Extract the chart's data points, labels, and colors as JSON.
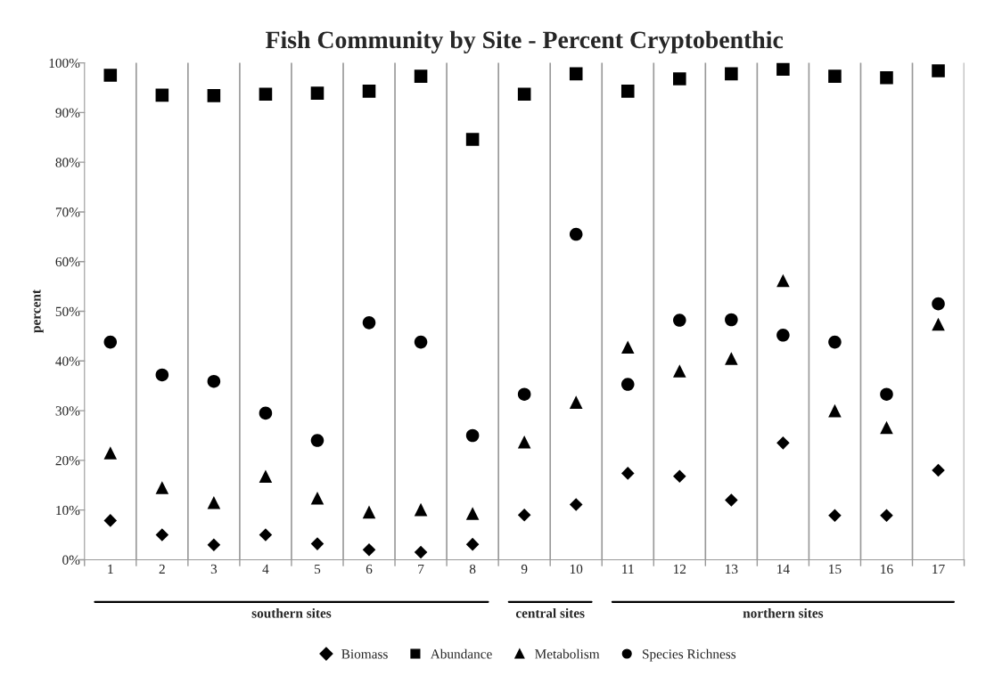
{
  "chart_data": {
    "type": "scatter",
    "title": "Fish Community by Site - Percent Cryptobenthic",
    "ylabel": "percent",
    "categories": [
      "1",
      "2",
      "3",
      "4",
      "5",
      "6",
      "7",
      "8",
      "9",
      "10",
      "11",
      "12",
      "13",
      "14",
      "15",
      "16",
      "17"
    ],
    "series": [
      {
        "name": "Biomass",
        "color": "#000000",
        "marker": "diamond",
        "values": [
          7.9,
          5.0,
          3.0,
          5.0,
          3.2,
          2.0,
          1.5,
          3.1,
          9.0,
          11.1,
          17.4,
          16.8,
          12.0,
          23.5,
          8.9,
          8.9,
          18.0
        ]
      },
      {
        "name": "Abundance",
        "color": "#000000",
        "marker": "square",
        "values": [
          97.5,
          93.5,
          93.4,
          93.7,
          93.9,
          94.3,
          97.3,
          84.6,
          93.7,
          97.8,
          94.3,
          96.8,
          97.8,
          98.7,
          97.3,
          97.0,
          98.4
        ]
      },
      {
        "name": "Metabolism",
        "color": "#000000",
        "marker": "triangle",
        "values": [
          21.5,
          14.5,
          11.5,
          16.8,
          12.4,
          9.6,
          10.1,
          9.3,
          23.7,
          31.7,
          42.8,
          38.0,
          40.5,
          56.2,
          30.0,
          26.6,
          47.4
        ]
      },
      {
        "name": "Species Richness",
        "color": "#000000",
        "marker": "circle",
        "values": [
          43.8,
          37.2,
          35.9,
          29.5,
          24.0,
          47.7,
          43.8,
          25.0,
          33.3,
          65.5,
          35.3,
          48.2,
          48.3,
          45.2,
          43.8,
          33.3,
          51.5
        ]
      }
    ],
    "ylim": [
      0,
      100
    ],
    "yticks": [
      {
        "value": 0,
        "label": "0%"
      },
      {
        "value": 10,
        "label": "10%"
      },
      {
        "value": 20,
        "label": "20%"
      },
      {
        "value": 30,
        "label": "30%"
      },
      {
        "value": 40,
        "label": "40%"
      },
      {
        "value": 50,
        "label": "50%"
      },
      {
        "value": 60,
        "label": "60%"
      },
      {
        "value": 70,
        "label": "70%"
      },
      {
        "value": 80,
        "label": "80%"
      },
      {
        "value": 90,
        "label": "90%"
      },
      {
        "value": 100,
        "label": "100%"
      }
    ],
    "grid": "x",
    "legend": "bottom",
    "annotations": [
      "southern sites",
      "central sites",
      "northern sites"
    ]
  }
}
